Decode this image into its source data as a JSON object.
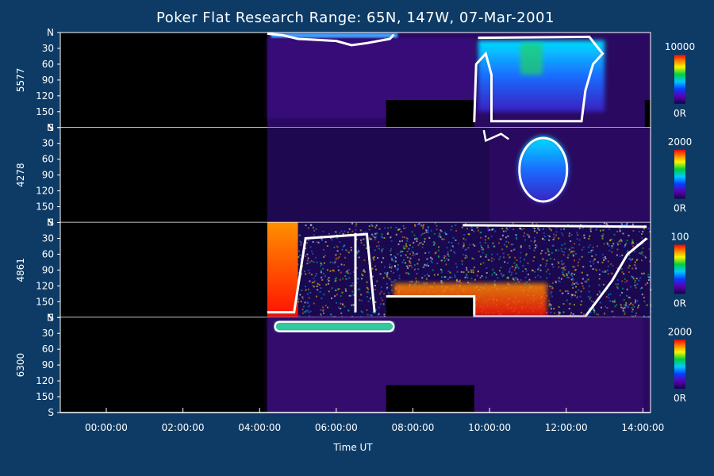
{
  "chart_data": {
    "type": "heatmap",
    "title": "Poker Flat Research Range: 65N, 147W, 07-Mar-2001",
    "xlabel": "Time UT",
    "x_ticks": [
      "00:00:00",
      "02:00:00",
      "04:00:00",
      "06:00:00",
      "08:00:00",
      "10:00:00",
      "12:00:00",
      "14:00:00"
    ],
    "xlim_hours": [
      -1.2,
      14.2
    ],
    "data_start_hour": 4.2,
    "y_ticks": [
      "N",
      "30",
      "60",
      "90",
      "120",
      "150",
      "S"
    ],
    "panels": [
      {
        "label": "5577",
        "colorbar_max": "10000",
        "colorbar_min": "0R",
        "features": [
          {
            "kind": "saturation_contour",
            "t_start": 4.2,
            "t_end": 7.6,
            "zenith_edge": 20
          },
          {
            "kind": "intense_band",
            "t_start": 9.6,
            "t_end": 13.0,
            "zenith_range": [
              20,
              170
            ]
          },
          {
            "kind": "no_data_block",
            "t_start": 7.3,
            "t_end": 9.6
          }
        ]
      },
      {
        "label": "4278",
        "colorbar_max": "2000",
        "colorbar_min": "0R",
        "features": [
          {
            "kind": "saturation_contour",
            "t_start": 10.8,
            "t_end": 12.0,
            "zenith_range": [
              30,
              130
            ]
          }
        ]
      },
      {
        "label": "4861",
        "colorbar_max": "100",
        "colorbar_min": "0R",
        "features": [
          {
            "kind": "saturated_region",
            "t_start": 4.2,
            "t_end": 5.0
          },
          {
            "kind": "saturated_region",
            "t_start": 7.5,
            "t_end": 11.5,
            "zenith_range": [
              110,
              180
            ]
          },
          {
            "kind": "no_data_block",
            "t_start": 7.3,
            "t_end": 9.6
          }
        ]
      },
      {
        "label": "6300",
        "colorbar_max": "2000",
        "colorbar_min": "0R",
        "features": [
          {
            "kind": "bright_band",
            "t_start": 4.2,
            "t_end": 7.6,
            "zenith_range": [
              5,
              20
            ]
          },
          {
            "kind": "no_data_block",
            "t_start": 7.3,
            "t_end": 9.6
          }
        ]
      }
    ]
  }
}
